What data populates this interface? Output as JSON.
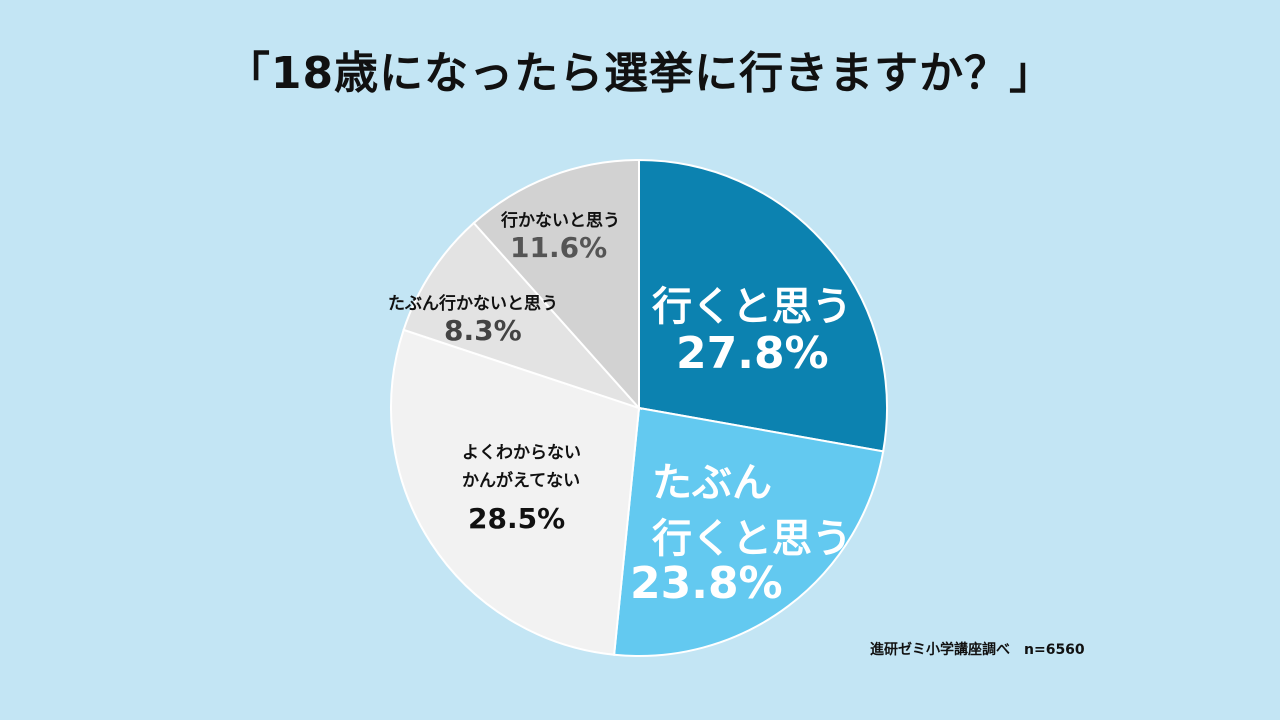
{
  "title": "「18歳になったら選挙に行きますか？」",
  "source": "進研ゼミ小学講座調べ　n=6560",
  "colors": {
    "background": "#c3e5f4",
    "go": "#0c82b0",
    "probably_go": "#63c9f0",
    "dont_know": "#f2f2f2",
    "probably_not": "#e3e3e3",
    "not_go": "#d2d2d2",
    "slice_border": "#ffffff"
  },
  "chart_data": {
    "type": "pie",
    "title": "「18歳になったら選挙に行きますか？」",
    "start": "12 o'clock, clockwise",
    "slices": [
      {
        "label": "行くと思う",
        "value": 27.8,
        "value_label": "27.8%",
        "color": "#0c82b0"
      },
      {
        "label": "たぶん 行くと思う",
        "value": 23.8,
        "value_label": "23.8%",
        "color": "#63c9f0"
      },
      {
        "label": "よくわからない かんがえてない",
        "value": 28.5,
        "value_label": "28.5%",
        "color": "#f2f2f2"
      },
      {
        "label": "たぶん行かないと思う",
        "value": 8.3,
        "value_label": "8.3%",
        "color": "#e3e3e3"
      },
      {
        "label": "行かないと思う",
        "value": 11.6,
        "value_label": "11.6%",
        "color": "#d2d2d2"
      }
    ]
  },
  "labels": {
    "go": {
      "line1": "行くと思う",
      "pct": "27.8%"
    },
    "probably_go": {
      "line1": "たぶん",
      "line2": "行くと思う",
      "pct": "23.8%"
    },
    "dont_know": {
      "line1": "よくわからない",
      "line2": "かんがえてない",
      "pct": "28.5%"
    },
    "probably_not": {
      "line1": "たぶん行かないと思う",
      "pct": "8.3%"
    },
    "not_go": {
      "line1": "行かないと思う",
      "pct": "11.6%"
    }
  }
}
